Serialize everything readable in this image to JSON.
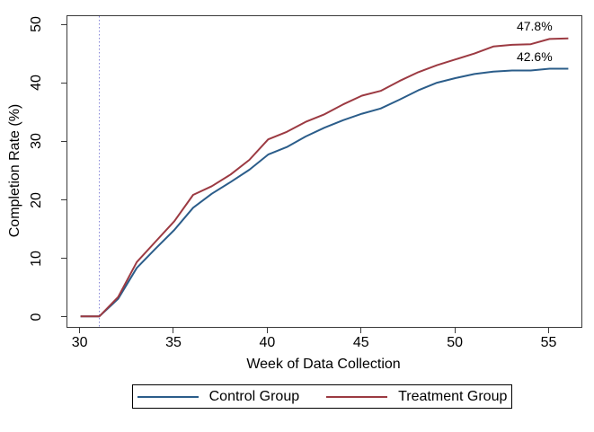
{
  "chart_data": {
    "type": "line",
    "title": "",
    "xlabel": "Week of Data Collection",
    "ylabel": "Completion Rate (%)",
    "x": [
      30,
      31,
      32,
      33,
      34,
      35,
      36,
      37,
      38,
      39,
      40,
      41,
      42,
      43,
      44,
      45,
      46,
      47,
      48,
      49,
      50,
      51,
      52,
      53,
      54,
      55,
      56
    ],
    "series": [
      {
        "name": "Control Group",
        "color": "#2b5d8a",
        "values": [
          0.2,
          0.2,
          3.2,
          8.5,
          11.8,
          15.0,
          18.8,
          21.2,
          23.2,
          25.3,
          27.9,
          29.2,
          31.0,
          32.5,
          33.8,
          34.9,
          35.8,
          37.3,
          38.9,
          40.2,
          41.0,
          41.7,
          42.1,
          42.3,
          42.3,
          42.6,
          42.6
        ]
      },
      {
        "name": "Treatment Group",
        "color": "#9c3a42",
        "values": [
          0.2,
          0.2,
          3.5,
          9.5,
          13.0,
          16.5,
          21.0,
          22.5,
          24.5,
          27.0,
          30.5,
          31.8,
          33.5,
          34.8,
          36.5,
          38.0,
          38.8,
          40.5,
          42.0,
          43.2,
          44.2,
          45.2,
          46.4,
          46.7,
          46.8,
          47.7,
          47.8
        ]
      }
    ],
    "xticks": [
      30,
      35,
      40,
      45,
      50,
      55
    ],
    "yticks": [
      0,
      10,
      20,
      30,
      40,
      50
    ],
    "xlim": [
      29.3,
      56.7
    ],
    "ylim": [
      -1.6,
      51.6
    ],
    "grid": false,
    "reference_line": {
      "x": 31,
      "style": "dotted",
      "color": "#8787d9"
    },
    "annotations": [
      {
        "text": "47.8%",
        "anchor_week": 55.2,
        "anchor_value": 47.8
      },
      {
        "text": "42.6%",
        "anchor_week": 55.2,
        "anchor_value": 42.6
      }
    ],
    "legend": {
      "position": "bottom"
    }
  }
}
